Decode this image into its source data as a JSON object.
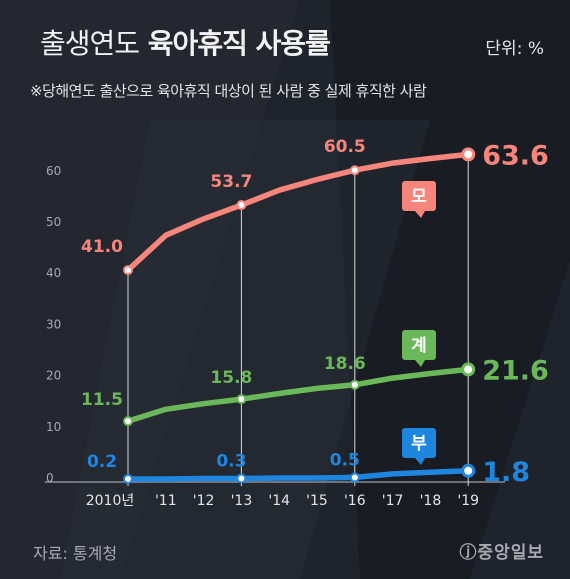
{
  "header": {
    "title_light": "출생연도",
    "title_bold": "육아휴직 사용률",
    "unit": "단위: %",
    "subtitle": "※당해연도 출산으로 육아휴직 대상이 된 사람 중 실제 휴직한 사람"
  },
  "footer": {
    "source": "자료: 통계청",
    "logo": "ⓙ중앙일보"
  },
  "chart_data": {
    "type": "line",
    "categories": [
      "2010년",
      "'11",
      "'12",
      "'13",
      "'14",
      "'15",
      "'16",
      "'17",
      "'18",
      "'19"
    ],
    "ylim": [
      0,
      65
    ],
    "yticks": [
      0,
      10,
      20,
      30,
      40,
      50,
      60
    ],
    "grid": false,
    "highlight_categories": [
      "2010년",
      "'13",
      "'16",
      "'19"
    ],
    "series": [
      {
        "name": "모",
        "color": "#f6857b",
        "values": [
          41.0,
          47.8,
          51.0,
          53.7,
          56.6,
          58.7,
          60.5,
          61.9,
          62.8,
          63.6
        ],
        "labels": [
          {
            "index": 0,
            "text": "41.0"
          },
          {
            "index": 3,
            "text": "53.7"
          },
          {
            "index": 6,
            "text": "60.5"
          },
          {
            "index": 9,
            "text": "63.6"
          }
        ]
      },
      {
        "name": "계",
        "color": "#6bb85a",
        "values": [
          11.5,
          13.8,
          14.9,
          15.8,
          16.9,
          17.9,
          18.6,
          19.9,
          20.8,
          21.6
        ],
        "labels": [
          {
            "index": 0,
            "text": "11.5"
          },
          {
            "index": 3,
            "text": "15.8"
          },
          {
            "index": 6,
            "text": "18.6"
          },
          {
            "index": 9,
            "text": "21.6"
          }
        ]
      },
      {
        "name": "부",
        "color": "#1f86e0",
        "values": [
          0.2,
          0.2,
          0.3,
          0.3,
          0.4,
          0.4,
          0.5,
          1.2,
          1.5,
          1.8
        ],
        "labels": [
          {
            "index": 0,
            "text": "0.2"
          },
          {
            "index": 3,
            "text": "0.3"
          },
          {
            "index": 6,
            "text": "0.5"
          },
          {
            "index": 9,
            "text": "1.8"
          }
        ]
      }
    ]
  }
}
